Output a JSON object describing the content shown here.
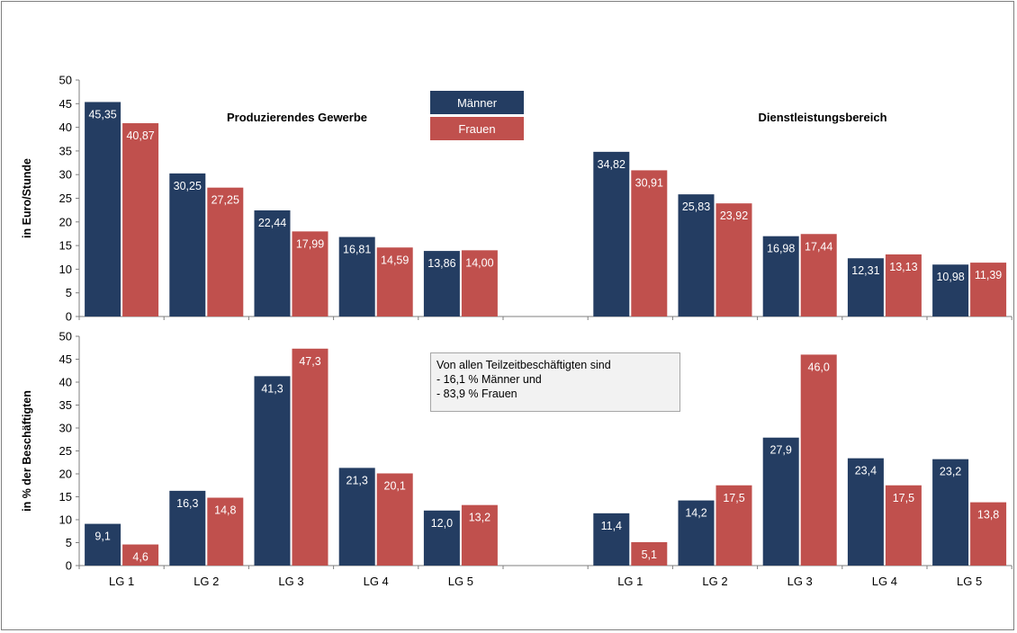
{
  "legend": {
    "maenner": "Männer",
    "frauen": "Frauen"
  },
  "note": {
    "lines": [
      "Von allen Teilzeitbeschäftigten sind",
      "- 16,1 % Männer und",
      "- 83,9 % Frauen"
    ]
  },
  "colors": {
    "maenner": "#243d62",
    "frauen": "#c0504d"
  },
  "chart_data": [
    {
      "type": "bar",
      "title": "",
      "ylabel": "in Euro/Stunde",
      "ylim": [
        0,
        50
      ],
      "yticks": [
        "0",
        "5",
        "10",
        "15",
        "20",
        "25",
        "30",
        "35",
        "40",
        "45",
        "50"
      ],
      "section_titles": [
        "Produzierendes Gewerbe",
        "Dienstleistungsbereich"
      ],
      "categories": [
        "LG 1",
        "LG 2",
        "LG 3",
        "LG 4",
        "LG 5",
        "",
        "LG 1",
        "LG 2",
        "LG 3",
        "LG 4",
        "LG 5"
      ],
      "series": [
        {
          "name": "Männer",
          "values": [
            45.35,
            30.25,
            22.44,
            16.81,
            13.86,
            null,
            34.82,
            25.83,
            16.98,
            12.31,
            10.98
          ],
          "labels": [
            "45,35",
            "30,25",
            "22,44",
            "16,81",
            "13,86",
            "",
            "34,82",
            "25,83",
            "16,98",
            "12,31",
            "10,98"
          ]
        },
        {
          "name": "Frauen",
          "values": [
            40.87,
            27.25,
            17.99,
            14.59,
            14.0,
            null,
            30.91,
            23.92,
            17.44,
            13.13,
            11.39
          ],
          "labels": [
            "40,87",
            "27,25",
            "17,99",
            "14,59",
            "14,00",
            "",
            "30,91",
            "23,92",
            "17,44",
            "13,13",
            "11,39"
          ]
        }
      ]
    },
    {
      "type": "bar",
      "title": "",
      "ylabel": "in % der Beschäftigten",
      "ylim": [
        0,
        50
      ],
      "yticks": [
        "0",
        "5",
        "10",
        "15",
        "20",
        "25",
        "30",
        "35",
        "40",
        "45",
        "50"
      ],
      "categories": [
        "LG 1",
        "LG 2",
        "LG 3",
        "LG 4",
        "LG 5",
        "",
        "LG 1",
        "LG 2",
        "LG 3",
        "LG 4",
        "LG 5"
      ],
      "series": [
        {
          "name": "Männer",
          "values": [
            9.1,
            16.3,
            41.3,
            21.3,
            12.0,
            null,
            11.4,
            14.2,
            27.9,
            23.4,
            23.2
          ],
          "labels": [
            "9,1",
            "16,3",
            "41,3",
            "21,3",
            "12,0",
            "",
            "11,4",
            "14,2",
            "27,9",
            "23,4",
            "23,2"
          ]
        },
        {
          "name": "Frauen",
          "values": [
            4.6,
            14.8,
            47.3,
            20.1,
            13.2,
            null,
            5.1,
            17.5,
            46.0,
            17.5,
            13.8
          ],
          "labels": [
            "4,6",
            "14,8",
            "47,3",
            "20,1",
            "13,2",
            "",
            "5,1",
            "17,5",
            "46,0",
            "17,5",
            "13,8"
          ]
        }
      ]
    }
  ]
}
